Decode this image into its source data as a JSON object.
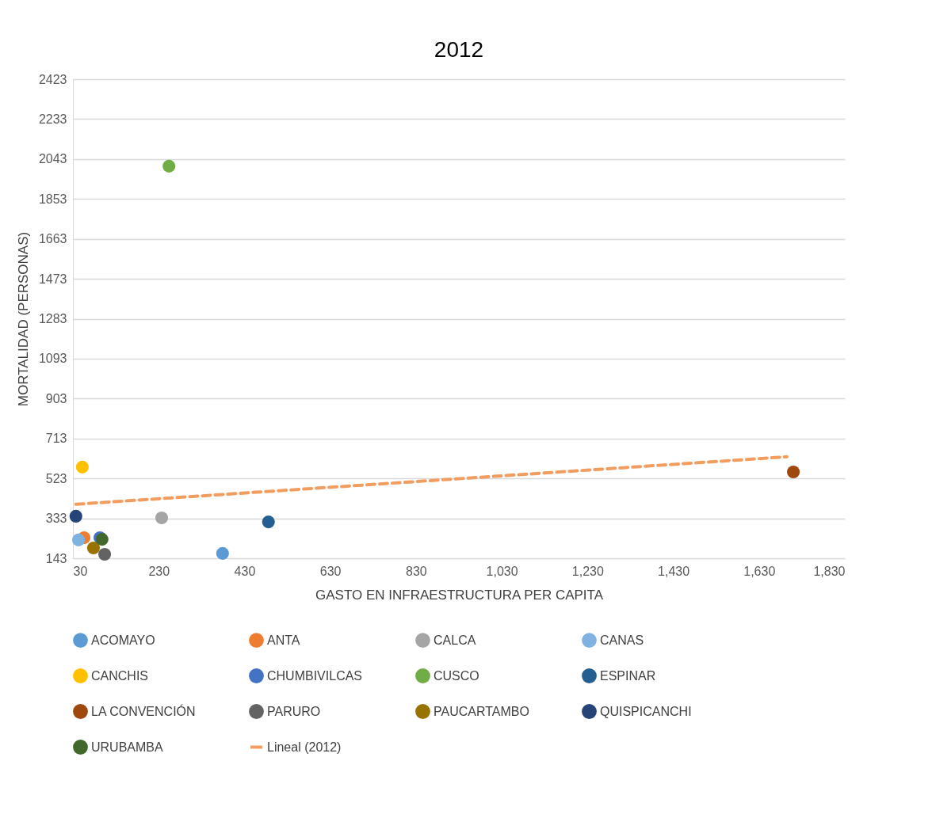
{
  "chart_data": {
    "type": "scatter",
    "title": "2012",
    "xlabel": "GASTO EN INFRAESTRUCTURA PER CAPITA",
    "ylabel": "MORTALIDAD (PERSONAS)",
    "xlim": [
      30,
      1830
    ],
    "xticks": [
      30,
      230,
      430,
      630,
      830,
      {
        "value": 1030,
        "label": "1,030"
      },
      {
        "value": 1230,
        "label": "1,230"
      },
      {
        "value": 1430,
        "label": "1,430"
      },
      {
        "value": 1630,
        "label": "1,630"
      },
      {
        "value": 1830,
        "label": "1,830"
      }
    ],
    "ylim": [
      143,
      2423
    ],
    "yticks": [
      143,
      333,
      523,
      713,
      903,
      1093,
      1283,
      1473,
      1663,
      1853,
      2043,
      2233,
      2423
    ],
    "grid": "y",
    "legend": "bottom",
    "marker": "circle",
    "series": [
      {
        "name": "ACOMAYO",
        "color": "#5b9bd5",
        "x": [
          379
        ],
        "values": [
          166
        ]
      },
      {
        "name": "ANTA",
        "color": "#ed7d31",
        "x": [
          56
        ],
        "values": [
          241
        ]
      },
      {
        "name": "CALCA",
        "color": "#a5a5a5",
        "x": [
          237
        ],
        "values": [
          335
        ]
      },
      {
        "name": "CANAS",
        "color": "#7fb2e0",
        "x": [
          43
        ],
        "values": [
          230
        ]
      },
      {
        "name": "CANCHIS",
        "color": "#ffc000",
        "x": [
          52
        ],
        "values": [
          577
        ]
      },
      {
        "name": "CHUMBIVILCAS",
        "color": "#4472c4",
        "x": [
          93
        ],
        "values": [
          241
        ]
      },
      {
        "name": "CUSCO",
        "color": "#70ad47",
        "x": [
          254
        ],
        "values": [
          2009
        ]
      },
      {
        "name": "ESPINAR",
        "color": "#255e91",
        "x": [
          486
        ],
        "values": [
          316
        ]
      },
      {
        "name": "LA CONVENCIÓN",
        "color": "#9e480e",
        "x": [
          1710
        ],
        "values": [
          554
        ]
      },
      {
        "name": "PARURO",
        "color": "#636363",
        "x": [
          104
        ],
        "values": [
          162
        ]
      },
      {
        "name": "PAUCARTAMBO",
        "color": "#997300",
        "x": [
          78
        ],
        "values": [
          192
        ]
      },
      {
        "name": "QUISPICANCHI",
        "color": "#264478",
        "x": [
          37
        ],
        "values": [
          343
        ]
      },
      {
        "name": "URUBAMBA",
        "color": "#43682b",
        "x": [
          98
        ],
        "values": [
          233
        ]
      },
      {
        "name": "Lineal (2012)",
        "color": "#f19d5f",
        "type": "line",
        "marker": "none",
        "line_style": "dashed",
        "x": [
          37,
          1695
        ],
        "values": [
          400,
          626
        ]
      }
    ]
  }
}
